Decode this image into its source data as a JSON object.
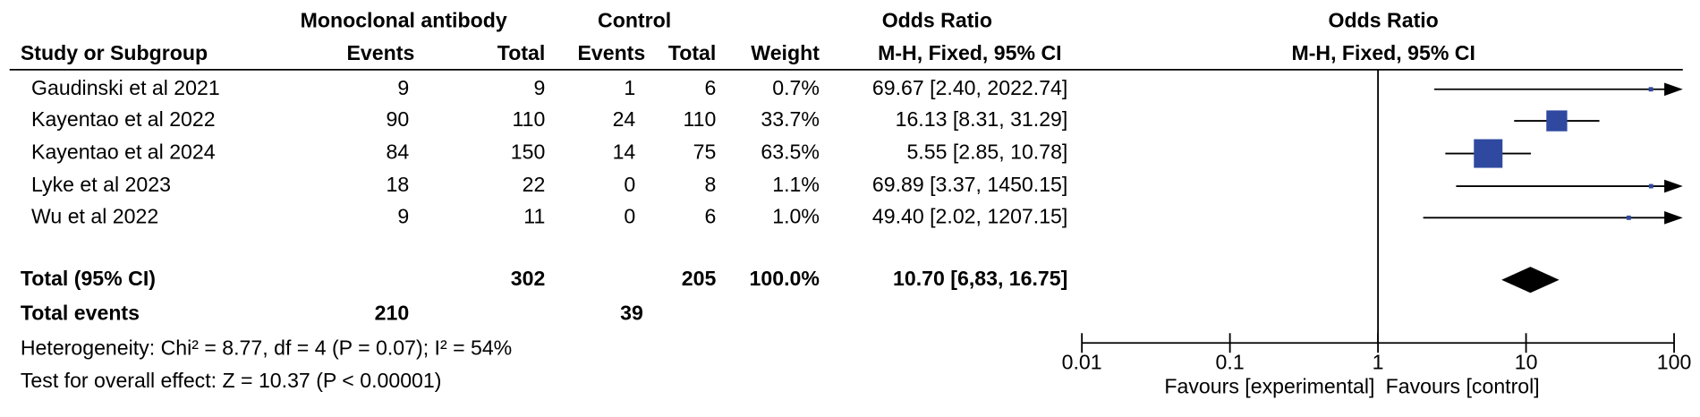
{
  "chart_data": {
    "type": "forest",
    "headers": {
      "group1": "Monoclonal antibody",
      "group2": "Control",
      "or_table": "Odds Ratio",
      "study": "Study or Subgroup",
      "events1": "Events",
      "total1": "Total",
      "events2": "Events",
      "total2": "Total",
      "weight": "Weight",
      "method_table": "M-H, Fixed, 95% CI",
      "or_plot": "Odds Ratio",
      "method_plot": "M-H, Fixed, 95% CI"
    },
    "categories": [
      "Gaudinski et al 2021",
      "Kayentao et al 2022",
      "Kayentao et al 2024",
      "Lyke et al 2023",
      "Wu et al 2022"
    ],
    "exp_events": [
      9,
      90,
      84,
      18,
      9
    ],
    "exp_totals": [
      9,
      110,
      150,
      22,
      11
    ],
    "ctl_events": [
      1,
      24,
      14,
      0,
      0
    ],
    "ctl_totals": [
      6,
      110,
      75,
      8,
      6
    ],
    "weights": [
      0.7,
      33.7,
      63.5,
      1.1,
      1.0
    ],
    "weight_labels": [
      "0.7%",
      "33.7%",
      "63.5%",
      "1.1%",
      "1.0%"
    ],
    "values": [
      69.67,
      16.13,
      5.55,
      69.89,
      49.4
    ],
    "lower": [
      2.4,
      8.31,
      2.85,
      3.37,
      2.02
    ],
    "upper": [
      2022.74,
      31.29,
      10.78,
      1450.15,
      1207.15
    ],
    "value_labels": [
      "69.67 [2.40, 2022.74]",
      "16.13 [8.31, 31.29]",
      "5.55 [2.85, 10.78]",
      "69.89 [3.37, 1450.15]",
      "49.40 [2.02, 1207.15]"
    ],
    "total": {
      "label": "Total (95% CI)",
      "exp_total": 302,
      "ctl_total": 205,
      "weight_label": "100.0%",
      "value": 10.7,
      "lower": 6.83,
      "upper": 16.75,
      "value_label": "10.70 [6,83, 16.75]"
    },
    "total_events": {
      "label": "Total events",
      "exp": 210,
      "ctl": 39
    },
    "heterogeneity": "Heterogeneity: Chi² = 8.77, df = 4 (P = 0.07); I² = 54%",
    "overall_effect": "Test for overall effect: Z = 10.37 (P < 0.00001)",
    "xlim": [
      0.01,
      100
    ],
    "xticks": [
      0.01,
      0.1,
      1,
      10,
      100
    ],
    "log_scale": true,
    "reference_line": 1,
    "favours_left": "Favours [experimental]",
    "favours_right": "Favours [control]",
    "color": "#2f49a0"
  }
}
